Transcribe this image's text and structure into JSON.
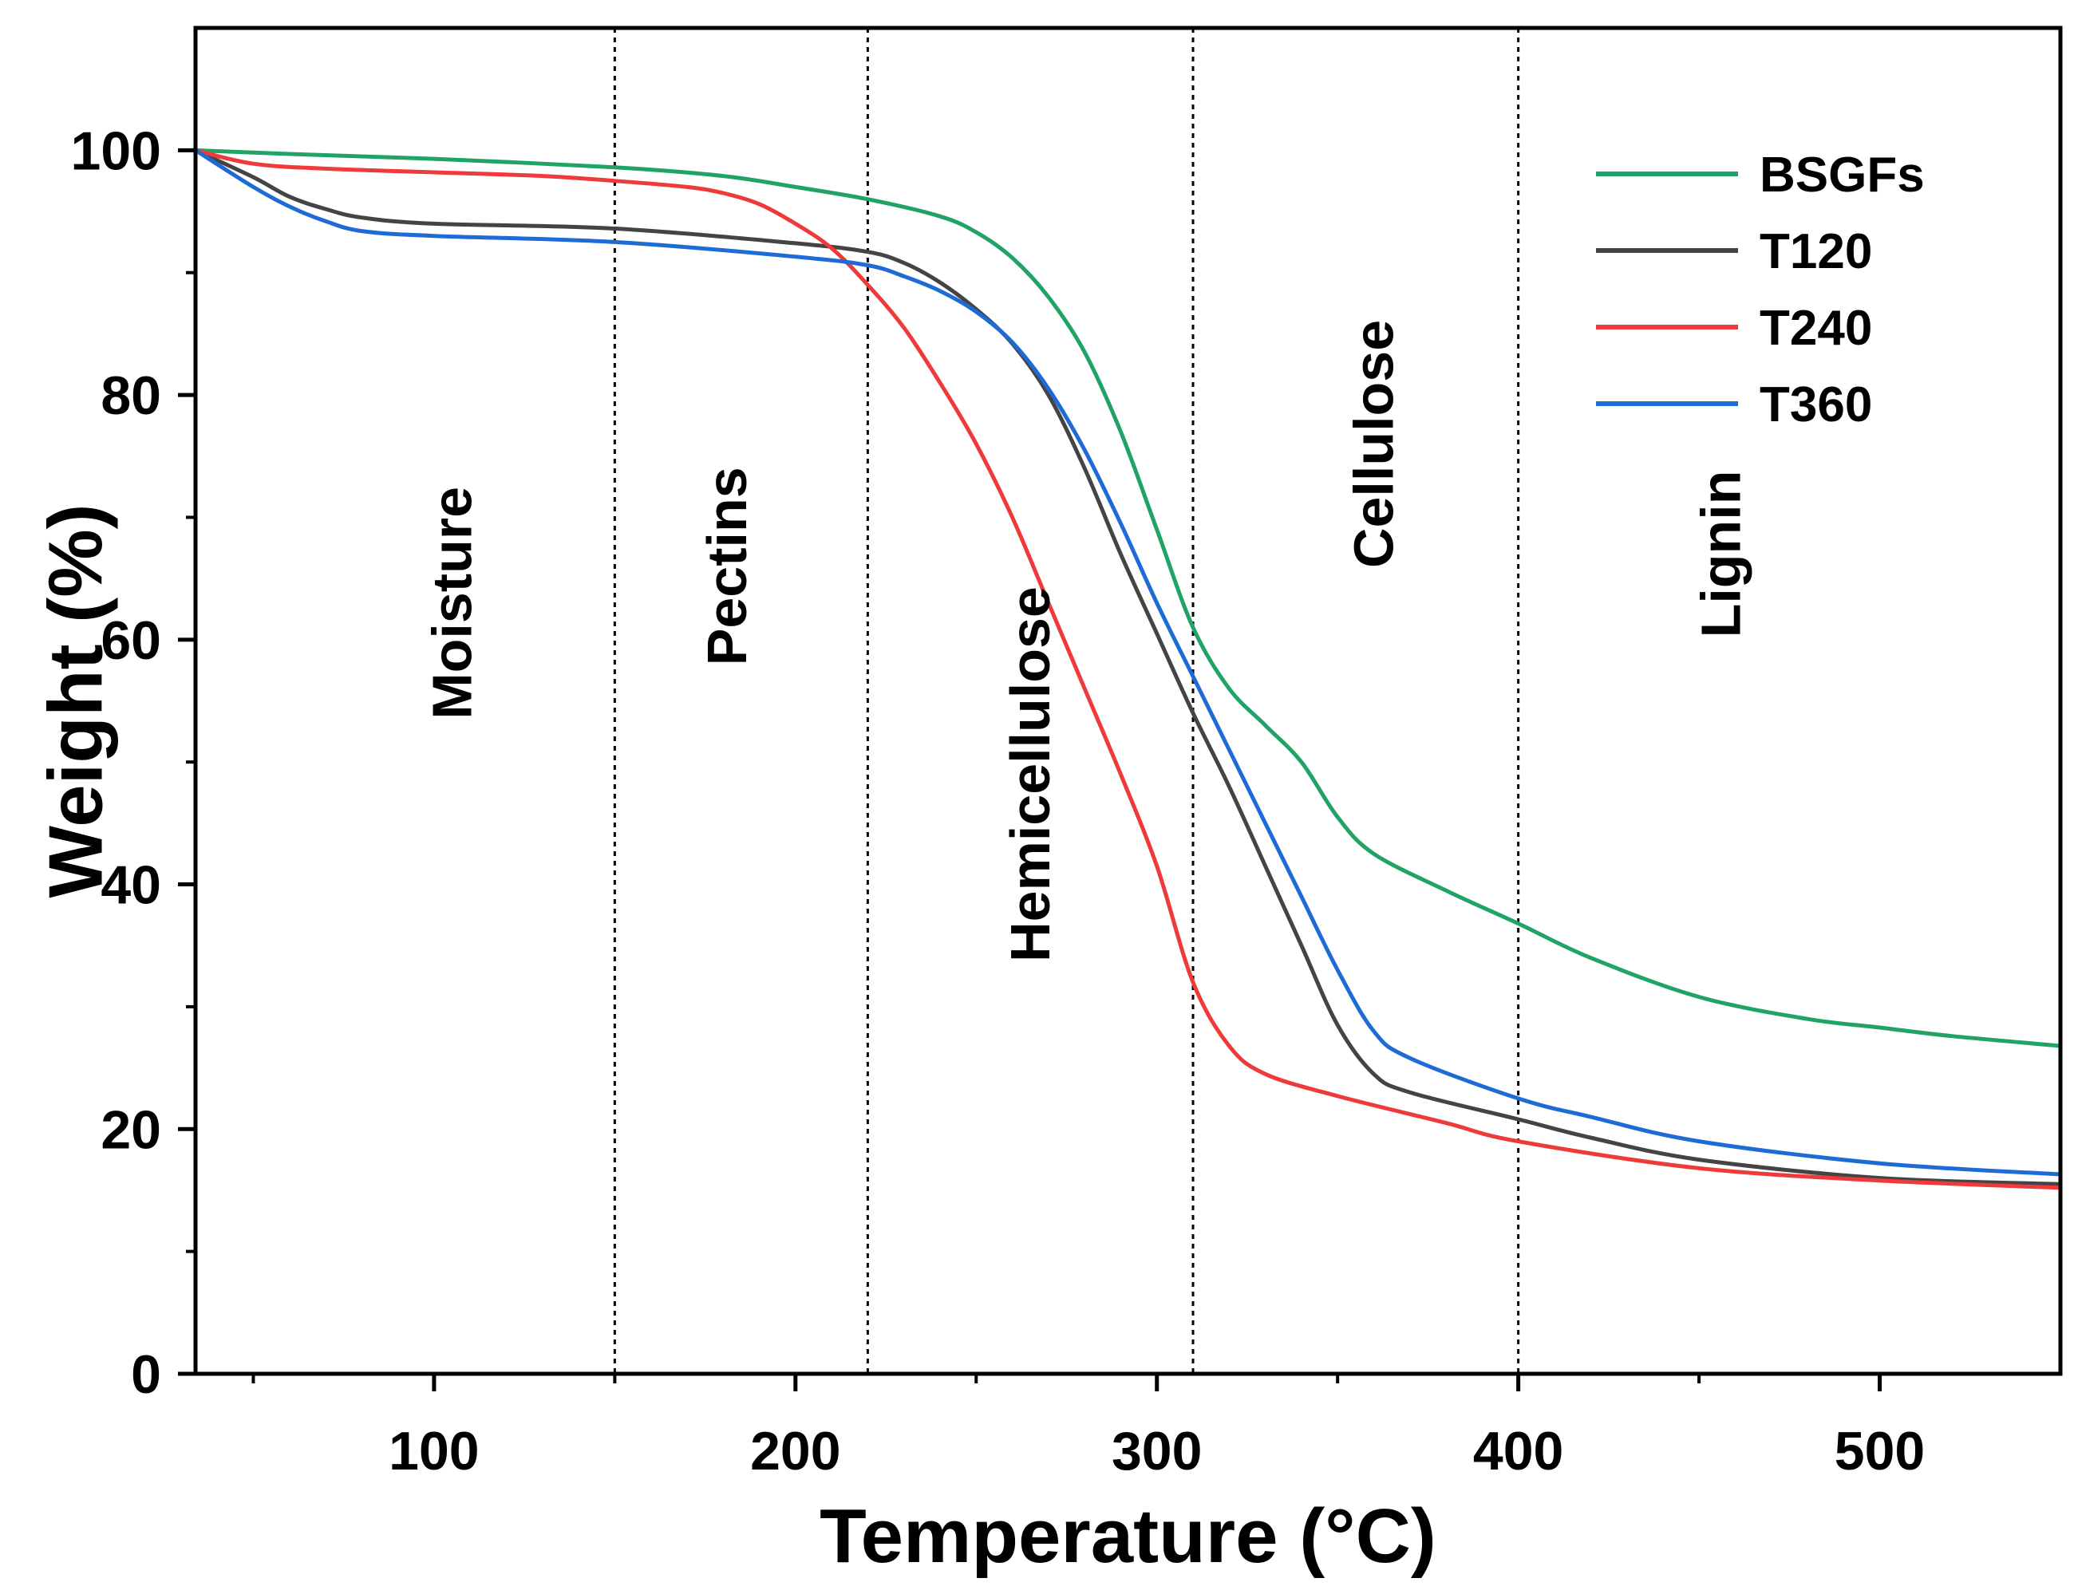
{
  "chart_data": {
    "type": "line",
    "title": "",
    "xlabel": "Temperature (°C)",
    "ylabel": "Weight (%)",
    "xlim": [
      34,
      550
    ],
    "ylim": [
      0,
      110
    ],
    "x_ticks": [
      100,
      200,
      300,
      400,
      500
    ],
    "x_minor_ticks": [
      50,
      150,
      250,
      350,
      450
    ],
    "y_ticks": [
      0,
      20,
      40,
      60,
      80,
      100
    ],
    "y_minor_ticks": [
      10,
      30,
      50,
      70,
      90
    ],
    "grid": false,
    "legend_position": "top-right",
    "boundaries": [
      150,
      220,
      310,
      400
    ],
    "regions": [
      {
        "label": "Moisture",
        "x": 105,
        "y": 63
      },
      {
        "label": "Pectins",
        "x": 181,
        "y": 66
      },
      {
        "label": "Hemicellulose",
        "x": 265,
        "y": 49
      },
      {
        "label": "Cellulose",
        "x": 360,
        "y": 76
      },
      {
        "label": "Lignin",
        "x": 456,
        "y": 67
      }
    ],
    "series": [
      {
        "name": "BSGFs",
        "color": "#21a366",
        "x": [
          34,
          60,
          100,
          150,
          180,
          200,
          220,
          240,
          250,
          260,
          270,
          280,
          290,
          300,
          310,
          320,
          330,
          340,
          350,
          360,
          380,
          400,
          420,
          450,
          480,
          500,
          520,
          550
        ],
        "y": [
          100,
          99.7,
          99.3,
          98.6,
          97.9,
          97,
          96,
          94.6,
          93.3,
          91.2,
          88,
          83.5,
          77,
          69,
          61,
          56,
          53,
          50,
          45.5,
          42.5,
          39.5,
          36.8,
          34,
          30.8,
          29,
          28.3,
          27.6,
          26.8
        ]
      },
      {
        "name": "T120",
        "color": "#444444",
        "x": [
          34,
          50,
          60,
          70,
          80,
          100,
          150,
          200,
          220,
          230,
          240,
          250,
          260,
          270,
          280,
          290,
          300,
          310,
          320,
          330,
          340,
          350,
          360,
          370,
          400,
          420,
          450,
          500,
          550
        ],
        "y": [
          100,
          97.8,
          96.2,
          95.2,
          94.5,
          94,
          93.6,
          92.4,
          91.7,
          90.8,
          89.2,
          87,
          84.2,
          80,
          74,
          67,
          60.5,
          54,
          48,
          41.5,
          35,
          28.5,
          24.5,
          23,
          20.8,
          19.3,
          17.5,
          16,
          15.5
        ]
      },
      {
        "name": "T240",
        "color": "#ee3a3a",
        "x": [
          34,
          50,
          70,
          100,
          130,
          150,
          170,
          180,
          190,
          200,
          210,
          220,
          230,
          240,
          250,
          260,
          270,
          280,
          290,
          300,
          310,
          320,
          330,
          350,
          380,
          400,
          450,
          500,
          550
        ],
        "y": [
          100,
          98.9,
          98.5,
          98.2,
          97.9,
          97.5,
          97,
          96.5,
          95.6,
          94,
          92,
          89,
          85.5,
          81,
          76,
          70,
          63,
          56,
          49,
          41.5,
          32,
          26.8,
          24.5,
          22.7,
          20.5,
          19,
          16.8,
          15.8,
          15.2
        ]
      },
      {
        "name": "T360",
        "color": "#1e6bd6",
        "x": [
          34,
          50,
          60,
          70,
          80,
          100,
          150,
          200,
          220,
          230,
          240,
          250,
          260,
          270,
          280,
          290,
          300,
          310,
          320,
          330,
          340,
          350,
          360,
          370,
          400,
          420,
          450,
          500,
          550
        ],
        "y": [
          100,
          97,
          95.4,
          94.2,
          93.4,
          93,
          92.5,
          91.3,
          90.6,
          89.7,
          88.5,
          86.8,
          84.3,
          80.5,
          75.5,
          69.5,
          63,
          57,
          51,
          45,
          39,
          33,
          28,
          25.8,
          22.5,
          21,
          19,
          17.2,
          16.3
        ]
      }
    ]
  }
}
